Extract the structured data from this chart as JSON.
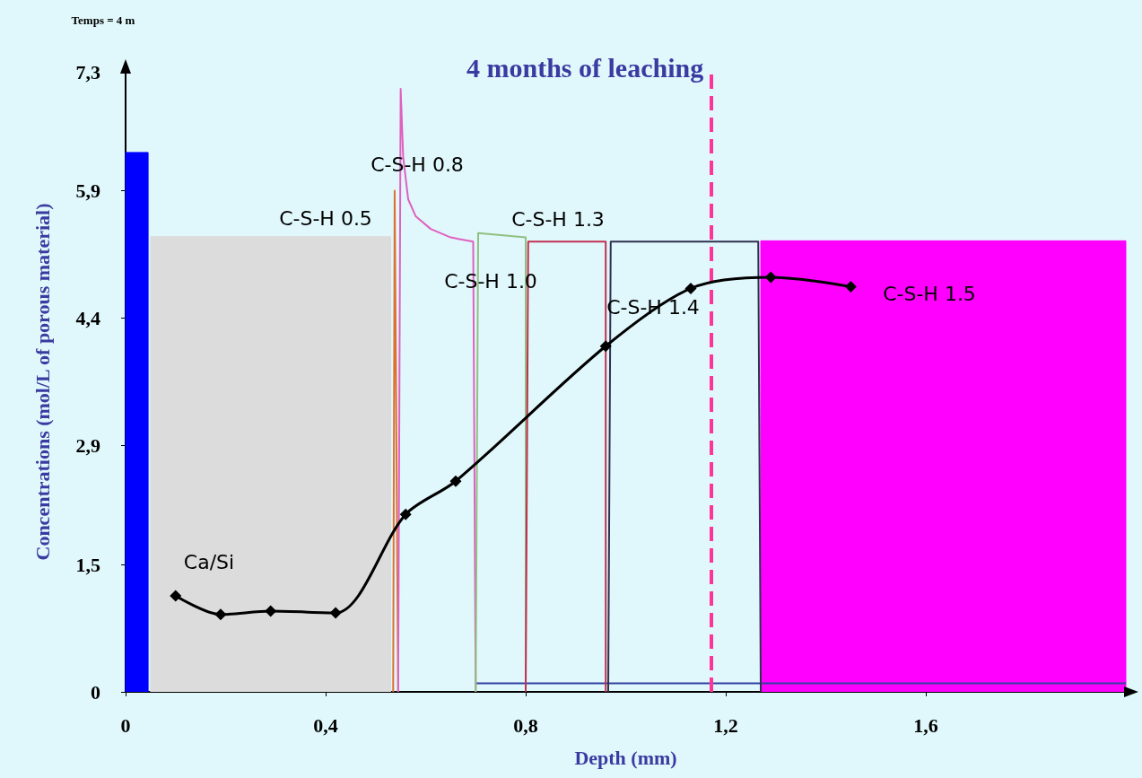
{
  "chart_data": {
    "type": "line",
    "title": "4 months of leaching",
    "xlabel": "Depth (mm)",
    "ylabel": "Concentrations (mol/L of porous material)",
    "xlim": [
      0,
      2.0
    ],
    "xticks": [
      0,
      {
        "value": 0.4,
        "label": "0,4"
      },
      {
        "value": 0.8,
        "label": "0,8"
      },
      {
        "value": 1.2,
        "label": "1,2"
      },
      {
        "value": 1.6,
        "label": "1,6"
      }
    ],
    "ylim": [
      0,
      7.3
    ],
    "yticks": [
      0,
      {
        "value": 1.5,
        "label": "1,5"
      },
      {
        "value": 2.9,
        "label": "2,9"
      },
      {
        "value": 4.4,
        "label": "4,4"
      },
      {
        "value": 5.9,
        "label": "5,9"
      },
      {
        "value": 7.3,
        "label": "7,3"
      }
    ],
    "grid": false,
    "marker": "none",
    "line_style": "solid",
    "series": [
      {
        "type": "area",
        "color": "#0000ff",
        "x": [
          0,
          0,
          0.045,
          0.045
        ],
        "values": [
          0,
          6.35,
          6.35,
          0
        ]
      },
      {
        "type": "area",
        "color": "#dcdcdc",
        "x": [
          0.05,
          0.05,
          0.53,
          0.53
        ],
        "values": [
          0,
          5.36,
          5.36,
          0
        ]
      },
      {
        "type": "area",
        "color": "#ff00ff",
        "x": [
          1.27,
          1.27,
          2.0,
          2.0
        ],
        "values": [
          0,
          5.31,
          5.31,
          0
        ]
      },
      {
        "color": "#3040a0",
        "x": [
          0.7,
          2.0
        ],
        "values": [
          0.1,
          0.1
        ]
      },
      {
        "color": "#e07030",
        "x": [
          0.535,
          0.538,
          0.545
        ],
        "values": [
          0,
          5.9,
          0
        ]
      },
      {
        "color": "#e060c0",
        "x": [
          0.545,
          0.55,
          0.555,
          0.565,
          0.58,
          0.61,
          0.65,
          0.695,
          0.7
        ],
        "values": [
          0,
          7.1,
          6.3,
          5.8,
          5.6,
          5.45,
          5.35,
          5.3,
          0
        ]
      },
      {
        "color": "#90c080",
        "x": [
          0.7,
          0.705,
          0.8,
          0.8
        ],
        "values": [
          0,
          5.4,
          5.35,
          0
        ]
      },
      {
        "color": "#c03050",
        "x": [
          0.8,
          0.805,
          0.96,
          0.96
        ],
        "values": [
          0,
          5.3,
          5.3,
          0
        ]
      },
      {
        "color": "#303050",
        "x": [
          0.965,
          0.97,
          1.265,
          1.27
        ],
        "values": [
          0,
          5.3,
          5.3,
          0
        ]
      },
      {
        "color": "#000000",
        "marker": "diamond",
        "x": [
          0.1,
          0.19,
          0.29,
          0.42,
          0.56,
          0.66,
          0.96,
          1.13,
          1.29,
          1.45
        ],
        "values": [
          1.13,
          0.91,
          0.95,
          0.93,
          2.09,
          2.48,
          4.07,
          4.75,
          4.88,
          4.77
        ]
      }
    ],
    "ref_lines": [
      {
        "axis": "x",
        "value": 1.165,
        "color": "#ff3399",
        "line_style": "dashed"
      }
    ],
    "annotations": [
      "Temps = 4 m",
      "C-S-H 0.5",
      "C-S-H 0.8",
      "C-S-H 1.3",
      "C-S-H 1.0",
      "C-S-H 1.4",
      "C-S-H 1.5",
      "Ca/Si"
    ]
  }
}
